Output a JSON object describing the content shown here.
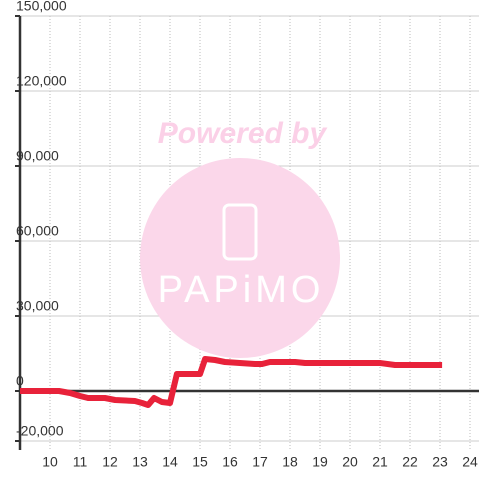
{
  "chart_data": {
    "type": "line",
    "watermark": {
      "text": "Powered by",
      "logo": "PAPiMO"
    },
    "x": [
      9,
      10.3,
      10.67,
      11,
      11.27,
      11.83,
      12.17,
      12.83,
      13.07,
      13.27,
      13.47,
      13.73,
      14,
      14.23,
      15,
      15.17,
      15.5,
      15.83,
      16.33,
      16.83,
      17.07,
      17.33,
      18.17,
      18.5,
      21,
      21.5,
      23.07
    ],
    "series": [
      {
        "color": "#e8223a",
        "values": [
          0,
          0,
          -800,
          -2000,
          -2800,
          -2800,
          -3600,
          -4000,
          -4800,
          -5600,
          -2800,
          -4400,
          -4800,
          6800,
          6800,
          12800,
          12400,
          11600,
          11200,
          10800,
          10800,
          11600,
          11600,
          11200,
          11200,
          10400,
          10400
        ]
      }
    ],
    "xlim": [
      9,
      24.3
    ],
    "xticks": [
      10,
      11,
      12,
      13,
      14,
      15,
      16,
      17,
      18,
      19,
      20,
      21,
      22,
      23,
      24
    ],
    "ylim": [
      -23600,
      150000
    ],
    "yticks": [
      {
        "value": -20000,
        "label": "-20,000"
      },
      0,
      {
        "value": 30000,
        "label": "30,000"
      },
      {
        "value": 60000,
        "label": "60,000"
      },
      {
        "value": 90000,
        "label": "90,000"
      },
      {
        "value": 120000,
        "label": "120,000"
      },
      {
        "value": 150000,
        "label": "150,000"
      }
    ],
    "grid": true
  }
}
